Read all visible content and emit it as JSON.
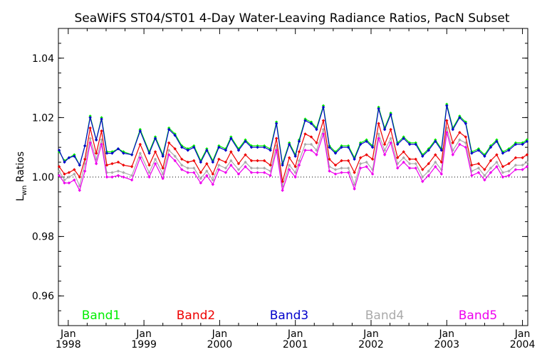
{
  "chart_data": {
    "type": "line",
    "title": "SeaWiFS ST04/ST01 4-Day Water-Leaving Radiance Ratios, PacN Subset",
    "ylabel_main": "L",
    "ylabel_sub": "wn",
    "ylabel_rest": " Ratios",
    "xlabel": "",
    "ylim": [
      0.95,
      1.05
    ],
    "xlim": [
      1997.87,
      2004.07
    ],
    "yticks": [
      "0.96",
      "0.98",
      "1.00",
      "1.02",
      "1.04"
    ],
    "yticks_values": [
      0.96,
      0.98,
      1.0,
      1.02,
      1.04
    ],
    "xticks": [
      {
        "month": "Jan",
        "year": "1998",
        "value": 1998.0
      },
      {
        "month": "Jan",
        "year": "1999",
        "value": 1999.0
      },
      {
        "month": "Jan",
        "year": "2000",
        "value": 2000.0
      },
      {
        "month": "Jan",
        "year": "2001",
        "value": 2001.0
      },
      {
        "month": "Jan",
        "year": "2002",
        "value": 2002.0
      },
      {
        "month": "Jan",
        "year": "2003",
        "value": 2003.0
      },
      {
        "month": "Jan",
        "year": "2004",
        "value": 2004.0
      }
    ],
    "reference_line": 1.0,
    "grid": false,
    "legend_position": "bottom",
    "x": [
      1997.88,
      1997.95,
      1998.01,
      1998.08,
      1998.15,
      1998.22,
      1998.29,
      1998.37,
      1998.44,
      1998.51,
      1998.58,
      1998.66,
      1998.73,
      1998.84,
      1998.95,
      1999.07,
      1999.15,
      1999.25,
      1999.33,
      1999.41,
      1999.5,
      1999.58,
      1999.66,
      1999.75,
      1999.83,
      1999.91,
      1999.99,
      2000.08,
      2000.15,
      2000.25,
      2000.34,
      2000.42,
      2000.5,
      2000.59,
      2000.67,
      2000.75,
      2000.83,
      2000.92,
      2001.0,
      2001.05,
      2001.13,
      2001.21,
      2001.28,
      2001.37,
      2001.45,
      2001.53,
      2001.61,
      2001.7,
      2001.78,
      2001.86,
      2001.94,
      2002.02,
      2002.1,
      2002.18,
      2002.26,
      2002.35,
      2002.43,
      2002.51,
      2002.59,
      2002.68,
      2002.76,
      2002.85,
      2002.93,
      2003.0,
      2003.08,
      2003.17,
      2003.25,
      2003.33,
      2003.42,
      2003.5,
      2003.58,
      2003.66,
      2003.74,
      2003.82,
      2003.91,
      2004.0,
      2004.06
    ],
    "series": [
      {
        "name": "Band1",
        "color": "#00ee00",
        "values": [
          1.0085,
          1.0055,
          1.0065,
          1.0075,
          1.004,
          1.0105,
          1.0205,
          1.0125,
          1.02,
          1.0085,
          1.0085,
          1.0095,
          1.0085,
          1.0075,
          1.016,
          1.0085,
          1.0135,
          1.0075,
          1.0165,
          1.0145,
          1.0105,
          1.0095,
          1.0105,
          1.0055,
          1.0095,
          1.0055,
          1.0105,
          1.0095,
          1.0135,
          1.0095,
          1.0125,
          1.0105,
          1.0105,
          1.0105,
          1.0095,
          1.0185,
          1.0045,
          1.0115,
          1.0075,
          1.0125,
          1.0195,
          1.0185,
          1.0165,
          1.024,
          1.0105,
          1.0085,
          1.0105,
          1.0105,
          1.0065,
          1.0115,
          1.0125,
          1.0105,
          1.0235,
          1.0165,
          1.0215,
          1.0115,
          1.0135,
          1.0115,
          1.0115,
          1.0075,
          1.0095,
          1.0125,
          1.0095,
          1.0245,
          1.0165,
          1.0205,
          1.0185,
          1.0085,
          1.0095,
          1.0075,
          1.0105,
          1.0125,
          1.0085,
          1.0095,
          1.0115,
          1.0115,
          1.0125
        ]
      },
      {
        "name": "Band2",
        "color": "#ee0000",
        "values": [
          1.0035,
          1.001,
          1.0015,
          1.0025,
          1.0,
          1.006,
          1.0165,
          1.008,
          1.0155,
          1.004,
          1.0045,
          1.005,
          1.004,
          1.0035,
          1.011,
          1.004,
          1.0085,
          1.003,
          1.0115,
          1.0095,
          1.006,
          1.005,
          1.0055,
          1.0015,
          1.0045,
          1.001,
          1.006,
          1.005,
          1.0085,
          1.0045,
          1.0075,
          1.0055,
          1.0055,
          1.0055,
          1.004,
          1.013,
          0.9985,
          1.0065,
          1.0035,
          1.0085,
          1.0145,
          1.0135,
          1.0115,
          1.019,
          1.006,
          1.004,
          1.0055,
          1.0055,
          1.0015,
          1.0065,
          1.0075,
          1.006,
          1.018,
          1.011,
          1.016,
          1.0065,
          1.0085,
          1.006,
          1.006,
          1.0025,
          1.0045,
          1.0075,
          1.005,
          1.019,
          1.0115,
          1.015,
          1.0135,
          1.004,
          1.0045,
          1.0025,
          1.0055,
          1.0075,
          1.0035,
          1.0045,
          1.0065,
          1.0065,
          1.0075
        ]
      },
      {
        "name": "Band3",
        "color": "#0000cc",
        "values": [
          1.009,
          1.005,
          1.0065,
          1.007,
          1.004,
          1.0105,
          1.02,
          1.0125,
          1.0195,
          1.008,
          1.008,
          1.0095,
          1.008,
          1.0075,
          1.0155,
          1.008,
          1.013,
          1.007,
          1.016,
          1.014,
          1.01,
          1.009,
          1.01,
          1.005,
          1.009,
          1.005,
          1.01,
          1.009,
          1.013,
          1.009,
          1.012,
          1.01,
          1.01,
          1.01,
          1.009,
          1.018,
          1.004,
          1.011,
          1.007,
          1.012,
          1.019,
          1.018,
          1.016,
          1.0235,
          1.01,
          1.008,
          1.01,
          1.01,
          1.006,
          1.011,
          1.012,
          1.01,
          1.023,
          1.016,
          1.021,
          1.011,
          1.013,
          1.011,
          1.011,
          1.007,
          1.009,
          1.012,
          1.009,
          1.024,
          1.016,
          1.02,
          1.018,
          1.008,
          1.009,
          1.007,
          1.01,
          1.012,
          1.008,
          1.009,
          1.011,
          1.011,
          1.012
        ]
      },
      {
        "name": "Band4",
        "color": "#aaaaaa",
        "values": [
          1.002,
          0.999,
          1.0,
          1.001,
          0.997,
          1.0045,
          1.013,
          1.006,
          1.0125,
          1.0015,
          1.0015,
          1.002,
          1.0015,
          1.0005,
          1.008,
          1.0015,
          1.006,
          1.001,
          1.009,
          1.007,
          1.004,
          1.003,
          1.003,
          0.9995,
          1.002,
          0.999,
          1.004,
          1.003,
          1.0055,
          1.0025,
          1.005,
          1.003,
          1.003,
          1.003,
          1.002,
          1.0105,
          0.997,
          1.004,
          1.0015,
          1.0055,
          1.011,
          1.011,
          1.009,
          1.016,
          1.0035,
          1.0025,
          1.003,
          1.003,
          0.9975,
          1.0045,
          1.005,
          1.0025,
          1.0145,
          1.009,
          1.013,
          1.0045,
          1.0065,
          1.0045,
          1.0045,
          1.0,
          1.002,
          1.005,
          1.0025,
          1.0165,
          1.009,
          1.0125,
          1.0115,
          1.002,
          1.003,
          1.0005,
          1.003,
          1.005,
          1.0015,
          1.002,
          1.004,
          1.004,
          1.005
        ]
      },
      {
        "name": "Band5",
        "color": "#ee00ee",
        "values": [
          1.0005,
          0.998,
          0.998,
          0.999,
          0.9955,
          1.002,
          1.0115,
          1.0045,
          1.011,
          1.0,
          1.0,
          1.0005,
          1.0,
          0.999,
          1.0065,
          1.0,
          1.0045,
          0.9995,
          1.0075,
          1.0055,
          1.0025,
          1.0015,
          1.0015,
          0.998,
          1.0005,
          0.9975,
          1.0025,
          1.0015,
          1.004,
          1.001,
          1.0035,
          1.0015,
          1.0015,
          1.0015,
          1.0005,
          1.009,
          0.9955,
          1.0025,
          1.0,
          1.004,
          1.009,
          1.009,
          1.0075,
          1.0145,
          1.002,
          1.001,
          1.0015,
          1.0015,
          0.996,
          1.003,
          1.0035,
          1.001,
          1.013,
          1.0075,
          1.0115,
          1.003,
          1.005,
          1.003,
          1.003,
          0.9985,
          1.0005,
          1.0035,
          1.001,
          1.015,
          1.0075,
          1.011,
          1.01,
          1.0005,
          1.0015,
          0.999,
          1.0015,
          1.0035,
          1.0,
          1.0005,
          1.0025,
          1.0025,
          1.0035
        ]
      }
    ]
  }
}
